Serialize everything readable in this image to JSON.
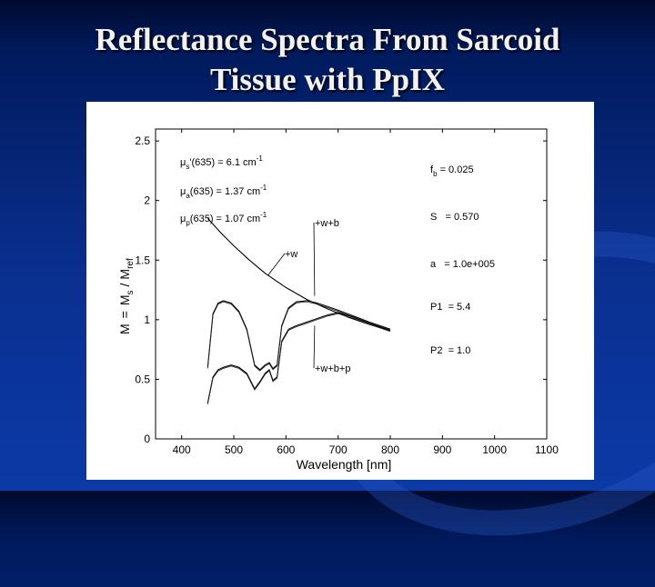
{
  "slide": {
    "title_line1": "Reflectance Spectra From Sarcoid",
    "title_line2": "Tissue with PpIX"
  },
  "chart_data": {
    "type": "line",
    "xlabel": "Wavelength [nm]",
    "ylabel_parts": {
      "M": "M",
      "eq": "=",
      "Ms": "M",
      "s": "s",
      "slash": "/",
      "Mref": "M",
      "ref": "ref"
    },
    "xlim": [
      350,
      1100
    ],
    "ylim": [
      0,
      2.6
    ],
    "xticks": [
      400,
      500,
      600,
      700,
      800,
      900,
      1000,
      1100
    ],
    "yticks": [
      0,
      0.5,
      1,
      1.5,
      2,
      2.5
    ],
    "ytick_labels": [
      "0",
      "0.5",
      "1",
      "1.5",
      "2",
      "2.5"
    ],
    "series": [
      {
        "name": "+w",
        "x": [
          450,
          475,
          500,
          530,
          560,
          600,
          640,
          680,
          720,
          760,
          800
        ],
        "values": [
          1.85,
          1.73,
          1.62,
          1.5,
          1.39,
          1.27,
          1.17,
          1.09,
          1.02,
          0.96,
          0.91
        ]
      },
      {
        "name": "+w+b",
        "x": [
          450,
          460,
          470,
          480,
          495,
          510,
          525,
          540,
          550,
          560,
          568,
          575,
          583,
          592,
          605,
          620,
          640,
          660,
          680,
          700,
          730,
          760,
          800
        ],
        "values": [
          0.6,
          1.05,
          1.14,
          1.16,
          1.14,
          1.07,
          0.92,
          0.62,
          0.58,
          0.62,
          0.64,
          0.59,
          0.62,
          0.95,
          1.1,
          1.15,
          1.16,
          1.14,
          1.11,
          1.08,
          1.03,
          0.98,
          0.92
        ]
      },
      {
        "name": "+w+b+p",
        "x": [
          450,
          460,
          470,
          480,
          495,
          510,
          525,
          540,
          550,
          560,
          568,
          575,
          583,
          592,
          605,
          620,
          640,
          660,
          680,
          700,
          730,
          760,
          800
        ],
        "values": [
          0.3,
          0.52,
          0.58,
          0.6,
          0.62,
          0.6,
          0.55,
          0.42,
          0.48,
          0.55,
          0.58,
          0.49,
          0.52,
          0.82,
          0.92,
          0.95,
          0.98,
          1.01,
          1.04,
          1.06,
          1.02,
          0.97,
          0.91
        ]
      }
    ],
    "labels": {
      "w": "+w",
      "wb": "+w+b",
      "wbp": "+w+b+p"
    },
    "annotations_left": [
      {
        "pre": "μ",
        "sub": "s",
        "mid": "'(635) = 6.1 cm",
        "sup": "-1"
      },
      {
        "pre": "μ",
        "sub": "a",
        "mid": "(635) = 1.37 cm",
        "sup": "-1"
      },
      {
        "pre": "μ",
        "sub": "p",
        "mid": "(635) = 1.07 cm",
        "sup": "-1"
      }
    ],
    "annotations_right": {
      "fb": {
        "pre": "f",
        "sub": "b",
        "mid": " = 0.025"
      },
      "S": "S   = 0.570",
      "a": "a   = 1.0e+005",
      "P1": "P1  = 5.4",
      "P2": "P2  = 1.0"
    },
    "grid": false,
    "legend": "none"
  }
}
